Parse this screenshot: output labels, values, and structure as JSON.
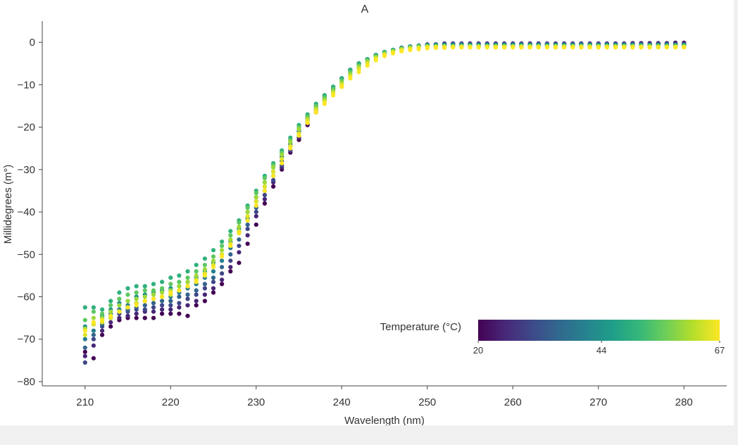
{
  "chart_data": {
    "type": "scatter",
    "title": "A",
    "xlabel": "Wavelength (nm)",
    "ylabel": "Millidegrees (m°)",
    "xlim": [
      205,
      285
    ],
    "ylim": [
      -81,
      5
    ],
    "xticks": [
      210,
      220,
      230,
      240,
      250,
      260,
      270,
      280
    ],
    "yticks": [
      0,
      -10,
      -20,
      -30,
      -40,
      -50,
      -60,
      -70,
      -80
    ],
    "ytick_labels": [
      "0",
      "−10",
      "−20",
      "−30",
      "−40",
      "−50",
      "−60",
      "−70",
      "−80"
    ],
    "grid": false,
    "colorbar": {
      "title": "Temperature (°C)",
      "min": 20,
      "max": 67,
      "tick_values": [
        20,
        44,
        67
      ],
      "tick_labels": [
        "20",
        "44",
        "67"
      ],
      "colormap": "viridis",
      "colors": [
        "#440154",
        "#482878",
        "#3e4989",
        "#31688e",
        "#26828e",
        "#1f9e89",
        "#35b779",
        "#6ece58",
        "#b5de2b",
        "#fde725"
      ],
      "placement": "bottom-right"
    },
    "temperatures": [
      20,
      25,
      30,
      35,
      40,
      44,
      50,
      55,
      60,
      65,
      67
    ],
    "wavelengths": [
      210,
      211,
      212,
      213,
      214,
      215,
      216,
      217,
      218,
      219,
      220,
      221,
      222,
      223,
      224,
      225,
      226,
      227,
      228,
      229,
      230,
      231,
      232,
      233,
      234,
      235,
      236,
      237,
      238,
      239,
      240,
      241,
      242,
      243,
      244,
      245,
      246,
      247,
      248,
      249,
      250,
      251,
      252,
      253,
      254,
      255,
      256,
      257,
      258,
      259,
      260,
      261,
      262,
      263,
      264,
      265,
      266,
      267,
      268,
      269,
      270,
      271,
      272,
      273,
      274,
      275,
      276,
      277,
      278,
      279,
      280
    ],
    "series": [
      {
        "temperature": 20,
        "values": [
          -73,
          -74.5,
          -69,
          -67,
          -65.5,
          -65,
          -65,
          -65,
          -65,
          -64,
          -64,
          -64,
          -64.5,
          -62,
          -61,
          -59,
          -57,
          -54,
          -52,
          -47.5,
          -43,
          -38,
          -34,
          -30,
          -26,
          -23,
          -19.5,
          -16.5,
          -13.5,
          -11,
          -8.5,
          -6.5,
          -5,
          -4,
          -3,
          -2.3,
          -1.8,
          -1.3,
          -1,
          -0.8,
          -0.5,
          -0.5,
          -0.3,
          -0.3,
          -0.3,
          -0.3,
          -0.3,
          -0.3,
          -0.3,
          -0.3,
          -0.3,
          -0.3,
          -0.3,
          -0.3,
          -0.3,
          -0.3,
          -0.3,
          -0.3,
          -0.3,
          -0.3,
          -0.3,
          -0.3,
          -0.3,
          -0.3,
          -0.2,
          -0.2,
          -0.2,
          -0.2,
          -0.2,
          -0.1,
          -0.1
        ]
      },
      {
        "temperature": 25,
        "values": [
          -74,
          -71.5,
          -68,
          -66,
          -65,
          -64.5,
          -64,
          -63.5,
          -63.5,
          -63,
          -63,
          -62.5,
          -62,
          -61,
          -59.5,
          -58,
          -56,
          -53,
          -49.5,
          -45.5,
          -41,
          -37,
          -33,
          -29.5,
          -25.5,
          -22.5,
          -19,
          -16,
          -13.5,
          -11,
          -8.5,
          -6.5,
          -5,
          -4,
          -3,
          -2.3,
          -1.8,
          -1.3,
          -1,
          -0.8,
          -0.6,
          -0.5,
          -0.4,
          -0.3,
          -0.3,
          -0.3,
          -0.3,
          -0.3,
          -0.3,
          -0.3,
          -0.3,
          -0.3,
          -0.3,
          -0.3,
          -0.3,
          -0.3,
          -0.3,
          -0.3,
          -0.3,
          -0.3,
          -0.3,
          -0.3,
          -0.3,
          -0.3,
          -0.3,
          -0.3,
          -0.3,
          -0.3,
          -0.3,
          -0.3,
          -0.3
        ]
      },
      {
        "temperature": 30,
        "values": [
          -75.5,
          -70,
          -67,
          -65,
          -64,
          -63.5,
          -63,
          -63,
          -62.5,
          -62,
          -62,
          -61.5,
          -60.5,
          -59.5,
          -58,
          -56.5,
          -54.5,
          -51.5,
          -48,
          -44,
          -40,
          -36,
          -32.5,
          -29,
          -25.5,
          -22,
          -18.5,
          -16,
          -13,
          -10.5,
          -8.5,
          -6.5,
          -5,
          -4,
          -3,
          -2.3,
          -1.8,
          -1.3,
          -1,
          -0.8,
          -0.6,
          -0.5,
          -0.4,
          -0.4,
          -0.4,
          -0.4,
          -0.4,
          -0.4,
          -0.4,
          -0.4,
          -0.4,
          -0.4,
          -0.4,
          -0.4,
          -0.4,
          -0.4,
          -0.4,
          -0.4,
          -0.4,
          -0.4,
          -0.4,
          -0.4,
          -0.4,
          -0.4,
          -0.4,
          -0.4,
          -0.4,
          -0.4,
          -0.4,
          -0.4,
          -0.4
        ]
      },
      {
        "temperature": 35,
        "values": [
          -72,
          -69,
          -66.5,
          -64.5,
          -63.5,
          -63,
          -62.5,
          -62,
          -61.5,
          -61,
          -61,
          -60,
          -59.5,
          -58.5,
          -57,
          -55.5,
          -53,
          -50,
          -46.5,
          -43,
          -39,
          -35,
          -31.5,
          -28,
          -24.5,
          -21,
          -18,
          -15.5,
          -13,
          -10.5,
          -8.5,
          -6.5,
          -5,
          -4,
          -3,
          -2.3,
          -1.8,
          -1.3,
          -1,
          -0.8,
          -0.6,
          -0.5,
          -0.5,
          -0.5,
          -0.5,
          -0.5,
          -0.5,
          -0.5,
          -0.5,
          -0.5,
          -0.5,
          -0.5,
          -0.5,
          -0.5,
          -0.5,
          -0.5,
          -0.5,
          -0.5,
          -0.5,
          -0.5,
          -0.5,
          -0.5,
          -0.5,
          -0.5,
          -0.5,
          -0.5,
          -0.5,
          -0.5,
          -0.5,
          -0.5,
          -0.5
        ]
      },
      {
        "temperature": 40,
        "values": [
          -70,
          -68,
          -65.5,
          -64,
          -63,
          -62,
          -61.5,
          -61,
          -60.5,
          -60,
          -60,
          -59,
          -58,
          -57,
          -55.5,
          -54,
          -51.5,
          -48.5,
          -45,
          -41.5,
          -37.5,
          -34,
          -30.5,
          -27,
          -24,
          -20.5,
          -17.5,
          -15,
          -12.5,
          -10.5,
          -8.5,
          -6.5,
          -5,
          -4,
          -3,
          -2.3,
          -1.8,
          -1.3,
          -1,
          -0.8,
          -0.6,
          -0.6,
          -0.6,
          -0.6,
          -0.6,
          -0.6,
          -0.6,
          -0.6,
          -0.6,
          -0.6,
          -0.6,
          -0.6,
          -0.6,
          -0.6,
          -0.6,
          -0.6,
          -0.6,
          -0.6,
          -0.6,
          -0.6,
          -0.6,
          -0.6,
          -0.6,
          -0.6,
          -0.6,
          -0.6,
          -0.6,
          -0.6,
          -0.6,
          -0.6,
          -0.6
        ]
      },
      {
        "temperature": 44,
        "values": [
          -67,
          -66.5,
          -64.5,
          -63,
          -61.5,
          -61,
          -60,
          -59.5,
          -59,
          -58.5,
          -58,
          -57.5,
          -56.5,
          -55.5,
          -54,
          -52,
          -50,
          -47,
          -44,
          -40,
          -36.5,
          -33,
          -29.5,
          -26.5,
          -23.5,
          -20.5,
          -17.5,
          -15,
          -12.5,
          -10.5,
          -8.5,
          -6.5,
          -5,
          -4,
          -3,
          -2.3,
          -1.8,
          -1.4,
          -1.1,
          -0.9,
          -0.7,
          -0.7,
          -0.7,
          -0.7,
          -0.7,
          -0.7,
          -0.7,
          -0.7,
          -0.7,
          -0.7,
          -0.7,
          -0.7,
          -0.7,
          -0.7,
          -0.7,
          -0.7,
          -0.7,
          -0.7,
          -0.7,
          -0.7,
          -0.7,
          -0.7,
          -0.7,
          -0.7,
          -0.7,
          -0.7,
          -0.7,
          -0.7,
          -0.7,
          -0.7,
          -0.7
        ]
      },
      {
        "temperature": 50,
        "values": [
          -62.5,
          -62.5,
          -63,
          -61,
          -59,
          -58,
          -57.5,
          -57.5,
          -57,
          -56.5,
          -55.5,
          -55,
          -54,
          -52.5,
          -51,
          -49,
          -47,
          -44.5,
          -42,
          -38.5,
          -35,
          -31.5,
          -28.5,
          -25.5,
          -22.5,
          -19.5,
          -17,
          -14.5,
          -12.5,
          -10.5,
          -8.5,
          -6.5,
          -5,
          -4,
          -3,
          -2.3,
          -1.8,
          -1.4,
          -1.1,
          -0.9,
          -0.8,
          -0.8,
          -0.8,
          -0.8,
          -0.8,
          -0.8,
          -0.8,
          -0.8,
          -0.8,
          -0.8,
          -0.8,
          -0.8,
          -0.8,
          -0.8,
          -0.8,
          -0.8,
          -0.8,
          -0.8,
          -0.8,
          -0.8,
          -0.8,
          -0.8,
          -0.8,
          -0.8,
          -0.8,
          -0.8,
          -0.8,
          -0.8,
          -0.8,
          -0.8,
          -0.8
        ]
      },
      {
        "temperature": 55,
        "values": [
          -65.5,
          -63.5,
          -64,
          -62,
          -60.5,
          -59.5,
          -59,
          -58.5,
          -58.5,
          -58,
          -57,
          -56.5,
          -55.5,
          -54,
          -52.5,
          -50.5,
          -48,
          -45.5,
          -42.5,
          -39,
          -35.5,
          -32,
          -29,
          -26,
          -23,
          -20,
          -17.5,
          -15,
          -13,
          -11,
          -9,
          -7,
          -5.5,
          -4.3,
          -3.3,
          -2.5,
          -2,
          -1.5,
          -1.2,
          -1,
          -0.9,
          -0.9,
          -0.9,
          -0.9,
          -0.9,
          -0.9,
          -0.9,
          -0.9,
          -0.9,
          -0.9,
          -0.9,
          -0.9,
          -0.9,
          -0.9,
          -0.9,
          -0.9,
          -0.9,
          -0.9,
          -0.9,
          -0.9,
          -0.9,
          -0.9,
          -0.9,
          -0.9,
          -0.9,
          -0.9,
          -0.9,
          -0.9,
          -0.9,
          -0.9,
          -0.9
        ]
      },
      {
        "temperature": 60,
        "values": [
          -67.5,
          -65,
          -65,
          -63.5,
          -62,
          -61,
          -60.5,
          -60,
          -59.5,
          -59,
          -58.5,
          -57.5,
          -56.5,
          -55,
          -53.5,
          -51.5,
          -49,
          -46.5,
          -43.5,
          -40,
          -36.5,
          -33,
          -29.5,
          -26.5,
          -23.5,
          -20.5,
          -18,
          -15.5,
          -13.5,
          -11.5,
          -9.5,
          -7.5,
          -5.8,
          -4.5,
          -3.5,
          -2.7,
          -2.1,
          -1.6,
          -1.3,
          -1.1,
          -1,
          -1,
          -1,
          -1,
          -1,
          -1,
          -1,
          -1,
          -1,
          -1,
          -1,
          -1,
          -1,
          -1,
          -1,
          -1,
          -1,
          -1,
          -1,
          -1,
          -1,
          -1,
          -1,
          -1,
          -1,
          -1,
          -1,
          -1,
          -1,
          -1,
          -1
        ]
      },
      {
        "temperature": 65,
        "values": [
          -69,
          -66.5,
          -66,
          -65,
          -63.5,
          -62.5,
          -61.5,
          -61,
          -60.5,
          -60,
          -59.5,
          -58.5,
          -57.5,
          -56,
          -54.5,
          -52.5,
          -50,
          -47.5,
          -44.5,
          -41,
          -37.5,
          -34,
          -30.5,
          -27.5,
          -24.5,
          -21.5,
          -18.5,
          -16,
          -14,
          -12,
          -10,
          -8,
          -6.3,
          -5,
          -3.8,
          -2.9,
          -2.3,
          -1.8,
          -1.5,
          -1.3,
          -1.1,
          -1.1,
          -1.1,
          -1.1,
          -1.1,
          -1.1,
          -1.1,
          -1.1,
          -1.1,
          -1.1,
          -1.1,
          -1.1,
          -1.1,
          -1.1,
          -1.1,
          -1.1,
          -1.1,
          -1.1,
          -1.1,
          -1.1,
          -1.1,
          -1.1,
          -1.1,
          -1.1,
          -1.1,
          -1.1,
          -1.1,
          -1.1,
          -1.1,
          -1.1,
          -1.1
        ]
      },
      {
        "temperature": 67,
        "values": [
          -68,
          -66,
          -65.5,
          -64.5,
          -63.5,
          -62.5,
          -62,
          -61,
          -60.5,
          -60,
          -59,
          -58.5,
          -57.5,
          -56.5,
          -55,
          -53,
          -50.5,
          -48,
          -45,
          -42,
          -38.5,
          -35,
          -31.5,
          -28.5,
          -25,
          -22,
          -19,
          -16.5,
          -14.5,
          -12.5,
          -10.5,
          -8.5,
          -7,
          -5.5,
          -4.2,
          -3.2,
          -2.6,
          -2.1,
          -1.8,
          -1.6,
          -1.4,
          -1.3,
          -1.3,
          -1.2,
          -1.2,
          -1.2,
          -1.2,
          -1.2,
          -1.2,
          -1.2,
          -1.2,
          -1.2,
          -1.2,
          -1.2,
          -1.2,
          -1.2,
          -1.2,
          -1.2,
          -1.2,
          -1.2,
          -1.2,
          -1.2,
          -1.2,
          -1.2,
          -1.2,
          -1.2,
          -1.2,
          -1.2,
          -1.2,
          -1.2,
          -1.2
        ]
      }
    ]
  }
}
